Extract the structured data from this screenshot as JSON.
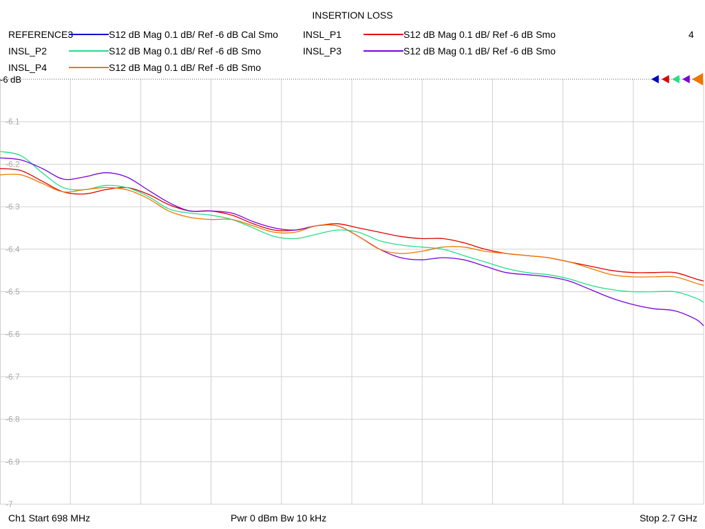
{
  "window": {
    "title": "INSERTION LOSS",
    "channel_number": "4"
  },
  "legend": [
    {
      "name": "REFERENCE3",
      "desc": "S12  dB Mag  0.1 dB/ Ref -6 dB  Cal Smo",
      "color": "#0000cc"
    },
    {
      "name": "INSL_P1",
      "desc": "S12  dB Mag  0.1 dB/ Ref -6 dB  Smo",
      "color": "#dd0000"
    },
    {
      "name": "INSL_P2",
      "desc": "S12  dB Mag  0.1 dB/ Ref -6 dB  Smo",
      "color": "#22dd88"
    },
    {
      "name": "INSL_P3",
      "desc": "S12  dB Mag  0.1 dB/ Ref -6 dB  Smo",
      "color": "#7a00dd"
    },
    {
      "name": "INSL_P4",
      "desc": "S12  dB Mag  0.1 dB/ Ref -6 dB  Smo",
      "color": "#ee7700"
    }
  ],
  "footer": {
    "start": "Ch1  Start  698 MHz",
    "power": "Pwr  0 dBm  Bw  10 kHz",
    "stop": "Stop  2.7 GHz"
  },
  "colors": {
    "grid": "#d0d0d0",
    "tick_label": "#aaaaaa",
    "ref_line": "#555555"
  },
  "chart_data": {
    "type": "line",
    "title": "INSERTION LOSS",
    "xlabel": "",
    "ylabel": "",
    "xlim": [
      698,
      2700
    ],
    "ylim": [
      -7,
      -6
    ],
    "x_unit": "MHz",
    "y_unit": "dB",
    "x_divisions": 10,
    "ref_label": "-6 dB",
    "y_ticks": [
      -6.1,
      -6.2,
      -6.3,
      -6.4,
      -6.5,
      -6.6,
      -6.7,
      -6.8,
      -6.9,
      -7
    ],
    "y_tick_labels": [
      "-6.1",
      "-6.2",
      "-6.3",
      "-6.4",
      "-6.5",
      "-6.6",
      "-6.7",
      "-6.8",
      "-6.9",
      "-7"
    ],
    "grid": true,
    "x": [
      698,
      758,
      818,
      878,
      938,
      998,
      1058,
      1118,
      1178,
      1238,
      1298,
      1358,
      1418,
      1478,
      1538,
      1598,
      1658,
      1718,
      1778,
      1838,
      1898,
      1958,
      2018,
      2078,
      2138,
      2198,
      2258,
      2318,
      2378,
      2438,
      2498,
      2558,
      2618,
      2678,
      2700
    ],
    "series": [
      {
        "name": "INSL_P1",
        "color": "#dd0000",
        "values": [
          -6.21,
          -6.215,
          -6.24,
          -6.265,
          -6.27,
          -6.26,
          -6.255,
          -6.27,
          -6.295,
          -6.31,
          -6.31,
          -6.32,
          -6.34,
          -6.355,
          -6.355,
          -6.345,
          -6.34,
          -6.35,
          -6.36,
          -6.37,
          -6.375,
          -6.375,
          -6.385,
          -6.4,
          -6.41,
          -6.415,
          -6.42,
          -6.43,
          -6.44,
          -6.45,
          -6.455,
          -6.455,
          -6.455,
          -6.47,
          -6.475
        ]
      },
      {
        "name": "INSL_P2",
        "color": "#22dd88",
        "values": [
          -6.17,
          -6.18,
          -6.22,
          -6.255,
          -6.26,
          -6.25,
          -6.255,
          -6.275,
          -6.305,
          -6.315,
          -6.32,
          -6.33,
          -6.35,
          -6.37,
          -6.375,
          -6.365,
          -6.355,
          -6.36,
          -6.38,
          -6.39,
          -6.395,
          -6.4,
          -6.415,
          -6.43,
          -6.445,
          -6.455,
          -6.46,
          -6.47,
          -6.485,
          -6.495,
          -6.5,
          -6.5,
          -6.5,
          -6.515,
          -6.525
        ]
      },
      {
        "name": "INSL_P3",
        "color": "#7a00dd",
        "values": [
          -6.185,
          -6.19,
          -6.21,
          -6.235,
          -6.23,
          -6.22,
          -6.23,
          -6.26,
          -6.29,
          -6.31,
          -6.31,
          -6.315,
          -6.335,
          -6.35,
          -6.355,
          -6.345,
          -6.345,
          -6.37,
          -6.4,
          -6.42,
          -6.425,
          -6.42,
          -6.425,
          -6.44,
          -6.455,
          -6.46,
          -6.465,
          -6.475,
          -6.495,
          -6.515,
          -6.53,
          -6.54,
          -6.545,
          -6.565,
          -6.58
        ]
      },
      {
        "name": "INSL_P4",
        "color": "#ee7700",
        "values": [
          -6.225,
          -6.225,
          -6.245,
          -6.265,
          -6.26,
          -6.255,
          -6.26,
          -6.28,
          -6.31,
          -6.325,
          -6.33,
          -6.33,
          -6.345,
          -6.36,
          -6.36,
          -6.345,
          -6.345,
          -6.37,
          -6.4,
          -6.41,
          -6.405,
          -6.395,
          -6.395,
          -6.405,
          -6.41,
          -6.415,
          -6.42,
          -6.43,
          -6.445,
          -6.46,
          -6.465,
          -6.465,
          -6.465,
          -6.48,
          -6.485
        ]
      }
    ]
  }
}
